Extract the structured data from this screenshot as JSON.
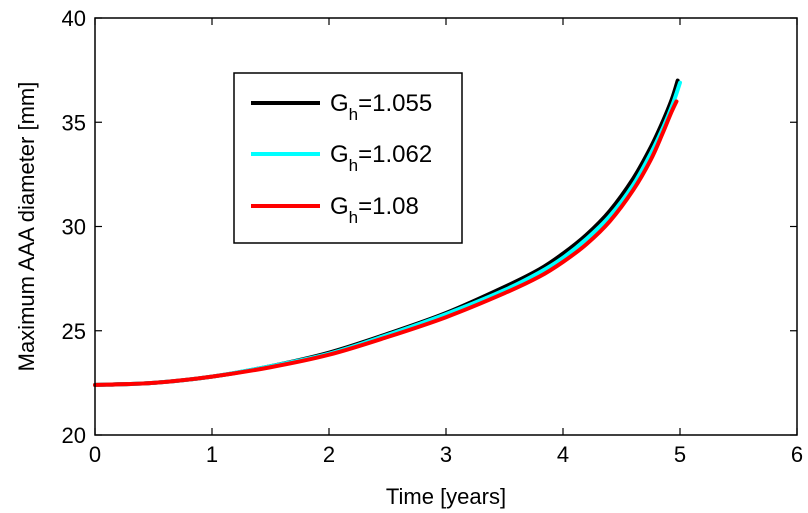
{
  "chart_data": {
    "type": "line",
    "title": "",
    "xlabel": "Time [years]",
    "ylabel": "Maximum AAA diameter [mm]",
    "xlim": [
      0,
      6
    ],
    "ylim": [
      20,
      40
    ],
    "x_ticks": [
      0,
      1,
      2,
      3,
      4,
      5,
      6
    ],
    "y_ticks": [
      20,
      25,
      30,
      35,
      40
    ],
    "x_tick_labels": [
      "0",
      "1",
      "2",
      "3",
      "4",
      "5",
      "6"
    ],
    "y_tick_labels": [
      "20",
      "25",
      "30",
      "35",
      "40"
    ],
    "grid": false,
    "legend_position": "top-left",
    "series": [
      {
        "name": "G_h=1.055",
        "legend_main": "G",
        "legend_sub": "h",
        "legend_tail": "=1.055",
        "color": "#000000",
        "x": [
          0,
          0.5,
          1.0,
          1.5,
          2.0,
          2.5,
          3.0,
          3.5,
          3.8,
          4.0,
          4.2,
          4.4,
          4.6,
          4.75,
          4.85,
          4.93,
          4.98
        ],
        "y": [
          22.4,
          22.5,
          22.8,
          23.3,
          23.95,
          24.85,
          25.85,
          27.1,
          27.95,
          28.7,
          29.6,
          30.75,
          32.3,
          33.8,
          35.0,
          36.1,
          37.0
        ]
      },
      {
        "name": "G_h=1.062",
        "legend_main": "G",
        "legend_sub": "h",
        "legend_tail": "=1.062",
        "color": "#00FFFF",
        "x": [
          0,
          0.5,
          1.0,
          1.5,
          2.0,
          2.5,
          3.0,
          3.5,
          3.8,
          4.0,
          4.2,
          4.4,
          4.6,
          4.75,
          4.86,
          4.94,
          5.0
        ],
        "y": [
          22.4,
          22.5,
          22.8,
          23.3,
          23.9,
          24.8,
          25.8,
          26.95,
          27.8,
          28.5,
          29.4,
          30.5,
          32.0,
          33.5,
          34.8,
          35.9,
          36.9
        ]
      },
      {
        "name": "G_h=1.08",
        "legend_main": "G",
        "legend_sub": "h",
        "legend_tail": "=1.08",
        "color": "#FF0000",
        "x": [
          0,
          0.5,
          1.0,
          1.5,
          2.0,
          2.5,
          3.0,
          3.5,
          3.8,
          4.0,
          4.2,
          4.4,
          4.6,
          4.75,
          4.85,
          4.92,
          4.97
        ],
        "y": [
          22.4,
          22.5,
          22.8,
          23.25,
          23.85,
          24.7,
          25.65,
          26.8,
          27.6,
          28.3,
          29.15,
          30.25,
          31.75,
          33.2,
          34.45,
          35.4,
          36.0
        ]
      }
    ]
  }
}
